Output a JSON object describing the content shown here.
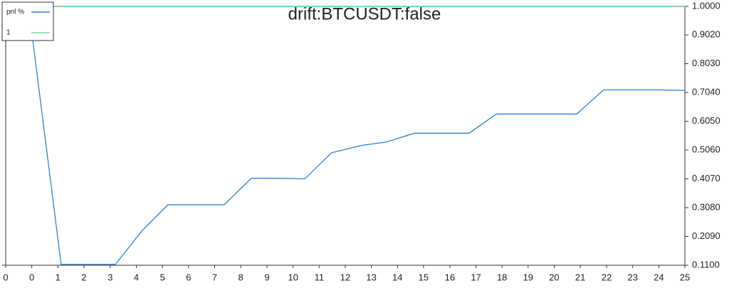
{
  "chart_data": {
    "type": "line",
    "title": "drift:BTCUSDT:false",
    "x": [
      0.84,
      2.04,
      4.04,
      5.03,
      5.97,
      8.04,
      9.04,
      10.01,
      11.01,
      12.0,
      13.1,
      14.02,
      15.04,
      17.06,
      18.06,
      21.02,
      22.01,
      24.0,
      25.0
    ],
    "series": [
      {
        "name": "pnl %",
        "color": "#2b83d0",
        "values": [
          1.0,
          0.113,
          0.113,
          0.23,
          0.318,
          0.318,
          0.409,
          0.409,
          0.407,
          0.497,
          0.522,
          0.534,
          0.564,
          0.564,
          0.63,
          0.63,
          0.713,
          0.713,
          0.711
        ]
      },
      {
        "name": "1",
        "color": "#7ddc9f",
        "values": [
          1.0,
          1.0,
          1.0,
          1.0,
          1.0,
          1.0,
          1.0,
          1.0,
          1.0,
          1.0,
          1.0,
          1.0,
          1.0,
          1.0,
          1.0,
          1.0,
          1.0,
          1.0,
          1.0
        ]
      }
    ],
    "xlim": [
      0,
      25
    ],
    "xticks": [
      {
        "value": 0,
        "label": "0"
      },
      {
        "value": 0.96,
        "label": "0"
      },
      {
        "value": 1.92,
        "label": "1"
      },
      {
        "value": 2.88,
        "label": "2"
      },
      {
        "value": 3.85,
        "label": "3"
      },
      {
        "value": 4.81,
        "label": "4"
      },
      {
        "value": 5.77,
        "label": "5"
      },
      {
        "value": 6.73,
        "label": "6"
      },
      {
        "value": 7.69,
        "label": "7"
      },
      {
        "value": 8.65,
        "label": "8"
      },
      {
        "value": 9.62,
        "label": "9"
      },
      {
        "value": 10.58,
        "label": "10"
      },
      {
        "value": 11.54,
        "label": "11"
      },
      {
        "value": 12.5,
        "label": "12"
      },
      {
        "value": 13.46,
        "label": "13"
      },
      {
        "value": 14.42,
        "label": "14"
      },
      {
        "value": 15.38,
        "label": "15"
      },
      {
        "value": 16.35,
        "label": "16"
      },
      {
        "value": 17.31,
        "label": "17"
      },
      {
        "value": 18.27,
        "label": "18"
      },
      {
        "value": 19.23,
        "label": "19"
      },
      {
        "value": 20.19,
        "label": "20"
      },
      {
        "value": 21.15,
        "label": "21"
      },
      {
        "value": 22.12,
        "label": "22"
      },
      {
        "value": 23.08,
        "label": "23"
      },
      {
        "value": 24.04,
        "label": "24"
      },
      {
        "value": 25,
        "label": "25"
      }
    ],
    "ylim": [
      0.11,
      1.0
    ],
    "yticks": [
      {
        "value": 0.11,
        "label": "0.1100"
      },
      {
        "value": 0.209,
        "label": "0.2090"
      },
      {
        "value": 0.308,
        "label": "0.3080"
      },
      {
        "value": 0.407,
        "label": "0.4070"
      },
      {
        "value": 0.506,
        "label": "0.5060"
      },
      {
        "value": 0.605,
        "label": "0.6050"
      },
      {
        "value": 0.704,
        "label": "0.7040"
      },
      {
        "value": 0.803,
        "label": "0.8030"
      },
      {
        "value": 0.902,
        "label": "0.9020"
      },
      {
        "value": 1.0,
        "label": "1.0000"
      }
    ],
    "legend": "top-left"
  }
}
